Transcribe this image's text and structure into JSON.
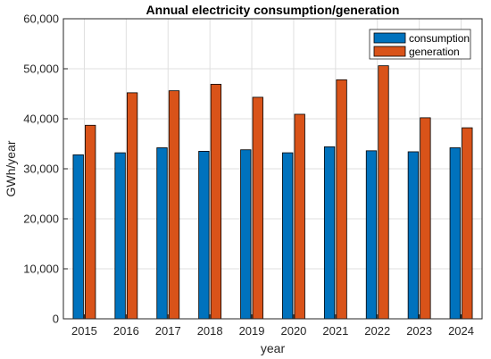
{
  "chart_data": {
    "type": "bar",
    "title": "Annual electricity consumption/generation",
    "xlabel": "year",
    "ylabel": "GWh/year",
    "categories": [
      "2015",
      "2016",
      "2017",
      "2018",
      "2019",
      "2020",
      "2021",
      "2022",
      "2023",
      "2024"
    ],
    "series": [
      {
        "name": "consumption",
        "color": "#0072BD",
        "values": [
          32800,
          33200,
          34200,
          33500,
          33800,
          33200,
          34400,
          33600,
          33400,
          34200
        ]
      },
      {
        "name": "generation",
        "color": "#D95319",
        "values": [
          38700,
          45200,
          45600,
          46900,
          44300,
          40900,
          47800,
          50600,
          40200,
          38200
        ]
      }
    ],
    "ylim": [
      0,
      60000
    ],
    "yticks": [
      "0",
      "10,000",
      "20,000",
      "30,000",
      "40,000",
      "50,000",
      "60,000"
    ],
    "ytick_values": [
      0,
      10000,
      20000,
      30000,
      40000,
      50000,
      60000
    ],
    "grid": true,
    "legend_position": "top-right"
  }
}
